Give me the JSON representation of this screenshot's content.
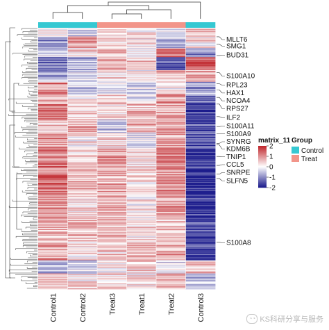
{
  "chart_data": {
    "type": "heatmap",
    "columns": [
      "Control1",
      "Control2",
      "Treat3",
      "Treat1",
      "Treat2",
      "Control3"
    ],
    "column_group": [
      "Control",
      "Control",
      "Treat",
      "Treat",
      "Treat",
      "Control"
    ],
    "row_labels": [
      "MLLT6",
      "SMG1",
      "BUD31",
      "S100A10",
      "RPL23",
      "HAX1",
      "NCOA4",
      "RPS27",
      "ILF2",
      "S100A11",
      "S100A9",
      "SYNRG",
      "KDM6B",
      "TNIP1",
      "CCL5",
      "SNRPE",
      "SLFN5",
      "S100A8"
    ],
    "row_label_fraction": [
      0.04,
      0.065,
      0.1,
      0.18,
      0.215,
      0.245,
      0.275,
      0.305,
      0.34,
      0.372,
      0.402,
      0.432,
      0.46,
      0.49,
      0.52,
      0.55,
      0.582,
      0.82
    ],
    "legend_scale": {
      "title": "matrix_11",
      "ticks": [
        2,
        1,
        0,
        -1,
        -2
      ],
      "low_color": "#1c1c8c",
      "mid_color": "#ffffff",
      "high_color": "#c0272d"
    },
    "legend_group": {
      "title": "Group",
      "items": [
        {
          "label": "Control",
          "color": "#36c8d2"
        },
        {
          "label": "Treat",
          "color": "#f2958a"
        }
      ]
    },
    "blocks": [
      {
        "rows": 0.03,
        "values": [
          0.3,
          -0.4,
          0.5,
          0.2,
          -0.3,
          0.6
        ]
      },
      {
        "rows": 0.045,
        "values": [
          -0.8,
          1.0,
          0.4,
          0.3,
          -0.5,
          0.2
        ]
      },
      {
        "rows": 0.035,
        "values": [
          -0.4,
          0.3,
          0.6,
          -0.2,
          1.2,
          -0.9
        ]
      },
      {
        "rows": 0.05,
        "values": [
          -1.2,
          -0.6,
          0.8,
          0.5,
          -1.4,
          1.6
        ]
      },
      {
        "rows": 0.045,
        "values": [
          -0.6,
          -0.3,
          0.4,
          0.2,
          0.6,
          0.8
        ]
      },
      {
        "rows": 0.045,
        "values": [
          1.1,
          -0.5,
          -0.3,
          -0.4,
          0.2,
          -0.7
        ]
      },
      {
        "rows": 0.04,
        "values": [
          0.6,
          0.2,
          0.5,
          -0.2,
          0.9,
          -1.1
        ]
      },
      {
        "rows": 0.06,
        "values": [
          1.3,
          0.4,
          0.2,
          0.6,
          0.8,
          -1.6
        ]
      },
      {
        "rows": 0.05,
        "values": [
          0.5,
          0.7,
          -0.5,
          0.6,
          0.9,
          -1.4
        ]
      },
      {
        "rows": 0.06,
        "values": [
          0.9,
          0.2,
          0.4,
          -0.3,
          0.7,
          -1.5
        ]
      },
      {
        "rows": 0.08,
        "values": [
          1.2,
          0.5,
          0.9,
          0.3,
          1.0,
          -1.7
        ]
      },
      {
        "rows": 0.09,
        "values": [
          1.3,
          0.7,
          0.8,
          0.4,
          1.1,
          -1.8
        ]
      },
      {
        "rows": 0.1,
        "values": [
          1.0,
          0.4,
          0.6,
          0.2,
          0.9,
          -1.7
        ]
      },
      {
        "rows": 0.09,
        "values": [
          0.7,
          0.6,
          0.5,
          0.3,
          0.6,
          -1.6
        ]
      },
      {
        "rows": 0.07,
        "values": [
          0.9,
          0.3,
          0.4,
          0.7,
          0.8,
          -1.6
        ]
      },
      {
        "rows": 0.05,
        "values": [
          -0.7,
          -0.4,
          0.2,
          0.4,
          -0.3,
          0.5
        ]
      },
      {
        "rows": 0.06,
        "values": [
          0.6,
          0.3,
          0.4,
          0.2,
          0.5,
          -0.6
        ]
      }
    ]
  },
  "watermark": {
    "text": "KS科研分享与服务"
  }
}
